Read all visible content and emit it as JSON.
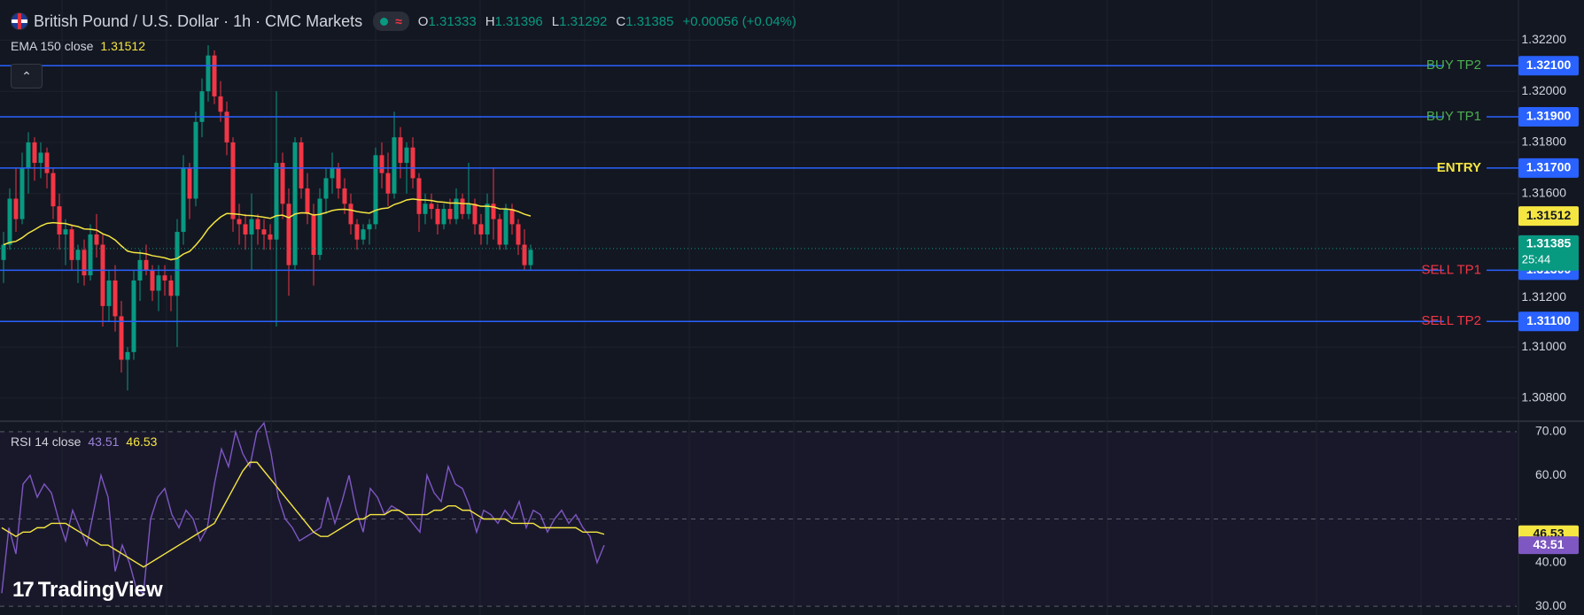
{
  "header": {
    "symbol_title": "British Pound / U.S. Dollar · 1h · CMC Markets",
    "ohlc": [
      {
        "key": "O",
        "value": "1.31333"
      },
      {
        "key": "H",
        "value": "1.31396"
      },
      {
        "key": "L",
        "value": "1.31292"
      },
      {
        "key": "C",
        "value": "1.31385"
      }
    ],
    "change": "+0.00056 (+0.04%)"
  },
  "ema_legend": {
    "label": "EMA 150 close",
    "value": "1.31512"
  },
  "rsi_legend": {
    "label": "RSI 14 close",
    "value": "43.51",
    "ma_value": "46.53"
  },
  "brand": {
    "name": "TradingView"
  },
  "colors": {
    "background": "#131722",
    "up": "#089981",
    "down": "#f23645",
    "level_line": "#2962ff",
    "ema": "#f5e642",
    "rsi": "#7e57c2",
    "buy_label": "#4caf50",
    "sell_label": "#f23645",
    "entry_label": "#f5e642"
  },
  "chart_data": [
    {
      "type": "candlestick",
      "title": "British Pound / U.S. Dollar · 1h · CMC Markets",
      "ylim": [
        1.3072,
        1.3226
      ],
      "y_ticks": [
        "1.32200",
        "1.32000",
        "1.31800",
        "1.31600",
        "1.31000",
        "1.30800"
      ],
      "last_price": {
        "value": 1.31385,
        "label": "1.31385",
        "countdown": "25:44"
      },
      "ema": {
        "name": "EMA 150 close",
        "value": 1.31512,
        "label": "1.31512"
      },
      "levels": [
        {
          "name": "BUY TP2",
          "value": 1.321,
          "label": "1.32100",
          "kind": "buy"
        },
        {
          "name": "BUY TP1",
          "value": 1.319,
          "label": "1.31900",
          "kind": "buy"
        },
        {
          "name": "ENTRY",
          "value": 1.317,
          "label": "1.31700",
          "kind": "entry"
        },
        {
          "name": "SELL TP1",
          "value": 1.313,
          "label": "1.31300",
          "kind": "sell"
        },
        {
          "name": "SELL TP2",
          "value": 1.311,
          "label": "1.31100",
          "kind": "sell"
        }
      ],
      "candles": [
        [
          1.3134,
          1.3145,
          1.3125,
          1.314
        ],
        [
          1.314,
          1.3162,
          1.3138,
          1.3158
        ],
        [
          1.3158,
          1.317,
          1.3145,
          1.315
        ],
        [
          1.315,
          1.3176,
          1.3148,
          1.317
        ],
        [
          1.317,
          1.3184,
          1.316,
          1.318
        ],
        [
          1.318,
          1.3182,
          1.3165,
          1.3172
        ],
        [
          1.3172,
          1.318,
          1.3166,
          1.3176
        ],
        [
          1.3176,
          1.3178,
          1.3162,
          1.3168
        ],
        [
          1.3168,
          1.317,
          1.315,
          1.3155
        ],
        [
          1.3155,
          1.316,
          1.3138,
          1.3144
        ],
        [
          1.3144,
          1.315,
          1.3132,
          1.3146
        ],
        [
          1.3146,
          1.3148,
          1.313,
          1.3134
        ],
        [
          1.3134,
          1.314,
          1.3125,
          1.3138
        ],
        [
          1.3138,
          1.3142,
          1.3124,
          1.3128
        ],
        [
          1.3128,
          1.3148,
          1.3126,
          1.3144
        ],
        [
          1.3144,
          1.3152,
          1.3135,
          1.314
        ],
        [
          1.314,
          1.3144,
          1.3108,
          1.3116
        ],
        [
          1.3116,
          1.313,
          1.311,
          1.3126
        ],
        [
          1.3126,
          1.3132,
          1.3106,
          1.3112
        ],
        [
          1.3112,
          1.3118,
          1.309,
          1.3095
        ],
        [
          1.3095,
          1.31,
          1.3083,
          1.3098
        ],
        [
          1.3098,
          1.313,
          1.3095,
          1.3126
        ],
        [
          1.3126,
          1.3138,
          1.3118,
          1.3134
        ],
        [
          1.3134,
          1.314,
          1.3128,
          1.313
        ],
        [
          1.313,
          1.3132,
          1.3118,
          1.3122
        ],
        [
          1.3122,
          1.3132,
          1.3114,
          1.3128
        ],
        [
          1.3128,
          1.3132,
          1.312,
          1.3126
        ],
        [
          1.3126,
          1.3128,
          1.3114,
          1.312
        ],
        [
          1.312,
          1.315,
          1.31,
          1.3145
        ],
        [
          1.3145,
          1.3175,
          1.314,
          1.317
        ],
        [
          1.317,
          1.3172,
          1.315,
          1.3158
        ],
        [
          1.3158,
          1.3192,
          1.3155,
          1.3188
        ],
        [
          1.3188,
          1.3205,
          1.3182,
          1.32
        ],
        [
          1.32,
          1.3218,
          1.3196,
          1.3214
        ],
        [
          1.3214,
          1.3216,
          1.3195,
          1.3198
        ],
        [
          1.3198,
          1.3204,
          1.3188,
          1.3192
        ],
        [
          1.3192,
          1.3196,
          1.3175,
          1.318
        ],
        [
          1.318,
          1.3182,
          1.3145,
          1.315
        ],
        [
          1.315,
          1.3156,
          1.314,
          1.3148
        ],
        [
          1.3148,
          1.3152,
          1.3138,
          1.3144
        ],
        [
          1.3144,
          1.316,
          1.313,
          1.315
        ],
        [
          1.315,
          1.3152,
          1.314,
          1.3146
        ],
        [
          1.3146,
          1.315,
          1.3138,
          1.3144
        ],
        [
          1.3144,
          1.3148,
          1.3138,
          1.3142
        ],
        [
          1.3142,
          1.32,
          1.3108,
          1.3172
        ],
        [
          1.3172,
          1.3176,
          1.315,
          1.3156
        ],
        [
          1.3156,
          1.3162,
          1.312,
          1.3132
        ],
        [
          1.3132,
          1.3182,
          1.313,
          1.318
        ],
        [
          1.318,
          1.3182,
          1.3158,
          1.3162
        ],
        [
          1.3162,
          1.3168,
          1.3148,
          1.3152
        ],
        [
          1.3152,
          1.3156,
          1.3124,
          1.3136
        ],
        [
          1.3136,
          1.3162,
          1.3134,
          1.3158
        ],
        [
          1.3158,
          1.317,
          1.3152,
          1.3166
        ],
        [
          1.3166,
          1.3176,
          1.316,
          1.317
        ],
        [
          1.317,
          1.3172,
          1.3158,
          1.3162
        ],
        [
          1.3162,
          1.3166,
          1.3152,
          1.3156
        ],
        [
          1.3156,
          1.316,
          1.3144,
          1.3148
        ],
        [
          1.3148,
          1.315,
          1.3138,
          1.3142
        ],
        [
          1.3142,
          1.3148,
          1.314,
          1.3146
        ],
        [
          1.3146,
          1.315,
          1.314,
          1.3148
        ],
        [
          1.3148,
          1.3178,
          1.3146,
          1.3175
        ],
        [
          1.3175,
          1.318,
          1.3162,
          1.3168
        ],
        [
          1.3168,
          1.3176,
          1.3155,
          1.316
        ],
        [
          1.316,
          1.3192,
          1.3158,
          1.3182
        ],
        [
          1.3182,
          1.3186,
          1.3166,
          1.3172
        ],
        [
          1.3172,
          1.318,
          1.316,
          1.3178
        ],
        [
          1.3178,
          1.3182,
          1.3162,
          1.3166
        ],
        [
          1.3166,
          1.3168,
          1.3145,
          1.3152
        ],
        [
          1.3152,
          1.316,
          1.3148,
          1.3156
        ],
        [
          1.3156,
          1.316,
          1.315,
          1.3154
        ],
        [
          1.3154,
          1.3156,
          1.3144,
          1.3148
        ],
        [
          1.3148,
          1.3156,
          1.3146,
          1.3154
        ],
        [
          1.3154,
          1.3158,
          1.3148,
          1.315
        ],
        [
          1.315,
          1.3162,
          1.3148,
          1.3158
        ],
        [
          1.3158,
          1.316,
          1.315,
          1.3152
        ],
        [
          1.3152,
          1.3172,
          1.315,
          1.3156
        ],
        [
          1.3156,
          1.3158,
          1.3144,
          1.3148
        ],
        [
          1.3148,
          1.3152,
          1.314,
          1.3144
        ],
        [
          1.3144,
          1.316,
          1.314,
          1.3156
        ],
        [
          1.3156,
          1.317,
          1.3142,
          1.315
        ],
        [
          1.315,
          1.3152,
          1.3138,
          1.314
        ],
        [
          1.314,
          1.3156,
          1.3138,
          1.3154
        ],
        [
          1.3154,
          1.3156,
          1.3144,
          1.3148
        ],
        [
          1.3148,
          1.315,
          1.3136,
          1.314
        ],
        [
          1.314,
          1.3146,
          1.313,
          1.3132
        ],
        [
          1.3132,
          1.314,
          1.313,
          1.3138
        ]
      ]
    },
    {
      "type": "line",
      "title": "RSI 14 close",
      "ylim": [
        28,
        72
      ],
      "y_ticks": [
        "70.00",
        "60.00",
        "40.00",
        "30.00"
      ],
      "reference_lines": [
        70,
        50,
        30
      ],
      "series": [
        {
          "name": "RSI 14 close",
          "last_label": "43.51",
          "values": [
            33,
            48,
            42,
            58,
            60,
            55,
            58,
            56,
            50,
            45,
            52,
            48,
            44,
            52,
            60,
            55,
            38,
            44,
            40,
            34,
            33,
            50,
            55,
            57,
            51,
            48,
            52,
            50,
            45,
            48,
            58,
            66,
            62,
            70,
            65,
            62,
            70,
            72,
            65,
            55,
            50,
            48,
            45,
            46,
            47,
            48,
            55,
            49,
            54,
            60,
            52,
            47,
            57,
            55,
            51,
            53,
            52,
            51,
            49,
            47,
            60,
            56,
            54,
            62,
            58,
            57,
            53,
            47,
            52,
            51,
            49,
            52,
            50,
            54,
            48,
            52,
            51,
            47,
            50,
            52,
            49,
            51,
            48,
            46,
            40,
            44
          ]
        },
        {
          "name": "RSI MA",
          "last_label": "46.53",
          "values": [
            48,
            47,
            46,
            47,
            47,
            48,
            48,
            49,
            49,
            49,
            48,
            47,
            46,
            45,
            44,
            44,
            43,
            42,
            41,
            40,
            39,
            40,
            41,
            42,
            43,
            44,
            45,
            46,
            47,
            48,
            49,
            52,
            55,
            58,
            61,
            63,
            63,
            61,
            59,
            57,
            55,
            53,
            51,
            49,
            47,
            46,
            46,
            47,
            48,
            49,
            50,
            50,
            51,
            51,
            51,
            52,
            52,
            51,
            51,
            51,
            51,
            52,
            52,
            53,
            53,
            52,
            52,
            51,
            50,
            50,
            50,
            50,
            49,
            49,
            49,
            49,
            48,
            48,
            48,
            48,
            48,
            48,
            47,
            47,
            47,
            46.5
          ]
        }
      ]
    }
  ]
}
